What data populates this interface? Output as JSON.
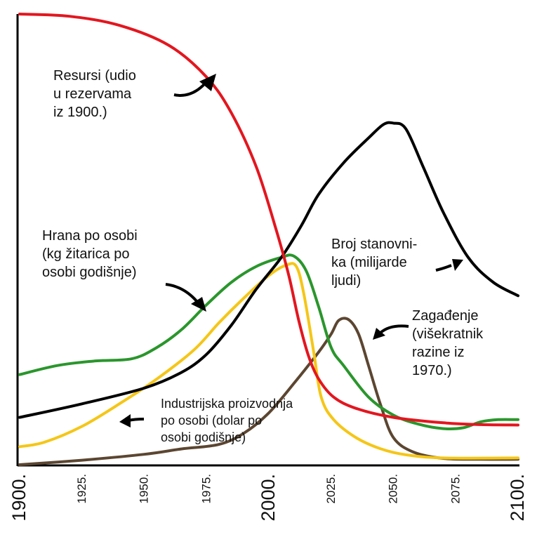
{
  "chart_data": {
    "type": "line",
    "xlim": [
      1900,
      2100
    ],
    "x_ticks": [
      1900,
      1925,
      1950,
      1975,
      2000,
      2025,
      2050,
      2075,
      2100
    ],
    "x_tick_labels": [
      "1900.",
      "1925.",
      "1950.",
      "1975.",
      "2000.",
      "2025.",
      "2050.",
      "2075.",
      "2100."
    ],
    "y_axis_ticks": "none",
    "grid": false,
    "series": [
      {
        "key": "resources",
        "color": "#e3161f",
        "label_lines": [
          "Resursi (udio",
          "u rezervama",
          "iz 1900.)"
        ],
        "points": [
          [
            1900,
            100
          ],
          [
            1920,
            99.5
          ],
          [
            1940,
            97.5
          ],
          [
            1960,
            93
          ],
          [
            1975,
            86
          ],
          [
            1985,
            78
          ],
          [
            1995,
            66
          ],
          [
            2003,
            52
          ],
          [
            2008,
            42
          ],
          [
            2012,
            32
          ],
          [
            2016,
            24
          ],
          [
            2020,
            19
          ],
          [
            2026,
            15
          ],
          [
            2035,
            12.5
          ],
          [
            2050,
            10.5
          ],
          [
            2070,
            9.3
          ],
          [
            2085,
            8.9
          ],
          [
            2100,
            8.8
          ]
        ]
      },
      {
        "key": "population",
        "color": "#000000",
        "label_lines": [
          "Broj stanovni-",
          "ka (milijarde",
          "ljudi)"
        ],
        "points": [
          [
            1900,
            10.5
          ],
          [
            1925,
            13.5
          ],
          [
            1950,
            17
          ],
          [
            1965,
            20.5
          ],
          [
            1975,
            24.5
          ],
          [
            1985,
            31
          ],
          [
            1995,
            39
          ],
          [
            2005,
            46
          ],
          [
            2013,
            53
          ],
          [
            2020,
            60
          ],
          [
            2030,
            67
          ],
          [
            2040,
            72.5
          ],
          [
            2046,
            75.5
          ],
          [
            2050,
            75.8
          ],
          [
            2055,
            74.5
          ],
          [
            2062,
            66
          ],
          [
            2070,
            56
          ],
          [
            2080,
            46
          ],
          [
            2090,
            40.5
          ],
          [
            2100,
            37.5
          ]
        ]
      },
      {
        "key": "food",
        "color": "#2a962c",
        "label_lines": [
          "Hrana po osobi",
          "(kg žitarica po",
          "osobi godišnje)"
        ],
        "points": [
          [
            1900,
            20
          ],
          [
            1915,
            22
          ],
          [
            1930,
            23
          ],
          [
            1945,
            23.5
          ],
          [
            1955,
            26
          ],
          [
            1965,
            30
          ],
          [
            1975,
            35.5
          ],
          [
            1985,
            40.5
          ],
          [
            1995,
            44
          ],
          [
            2005,
            46
          ],
          [
            2010,
            46.3
          ],
          [
            2015,
            43
          ],
          [
            2020,
            35
          ],
          [
            2025,
            26
          ],
          [
            2030,
            22
          ],
          [
            2040,
            15
          ],
          [
            2050,
            11
          ],
          [
            2060,
            9
          ],
          [
            2070,
            8
          ],
          [
            2078,
            8.2
          ],
          [
            2085,
            9.5
          ],
          [
            2092,
            10
          ],
          [
            2100,
            10
          ]
        ]
      },
      {
        "key": "industrial_output",
        "color": "#f5c617",
        "label_lines": [
          "Industrijska proizvodnja",
          "po osobi (dolar po",
          "osobi godišnje)"
        ],
        "points": [
          [
            1900,
            4
          ],
          [
            1910,
            5
          ],
          [
            1925,
            8.5
          ],
          [
            1940,
            13.5
          ],
          [
            1955,
            19
          ],
          [
            1970,
            25.5
          ],
          [
            1980,
            31.5
          ],
          [
            1990,
            37
          ],
          [
            2000,
            42
          ],
          [
            2007,
            44.3
          ],
          [
            2011,
            44
          ],
          [
            2014,
            38
          ],
          [
            2018,
            25
          ],
          [
            2021,
            15
          ],
          [
            2026,
            10
          ],
          [
            2035,
            6
          ],
          [
            2045,
            3.5
          ],
          [
            2055,
            2.2
          ],
          [
            2070,
            1.5
          ],
          [
            2100,
            1.5
          ]
        ]
      },
      {
        "key": "pollution",
        "color": "#5c4631",
        "label_lines": [
          "Zagađenje",
          "(višekratnik",
          "razine iz",
          "1970.)"
        ],
        "points": [
          [
            1900,
            0
          ],
          [
            1925,
            1
          ],
          [
            1950,
            2.3
          ],
          [
            1965,
            3.5
          ],
          [
            1980,
            4.5
          ],
          [
            1990,
            7
          ],
          [
            2000,
            11.5
          ],
          [
            2010,
            18
          ],
          [
            2020,
            25
          ],
          [
            2025,
            29
          ],
          [
            2028,
            32
          ],
          [
            2032,
            32.2
          ],
          [
            2036,
            29
          ],
          [
            2040,
            22
          ],
          [
            2045,
            13
          ],
          [
            2050,
            6
          ],
          [
            2058,
            2.8
          ],
          [
            2070,
            1.4
          ],
          [
            2085,
            1.2
          ],
          [
            2100,
            1.2
          ]
        ]
      }
    ]
  }
}
